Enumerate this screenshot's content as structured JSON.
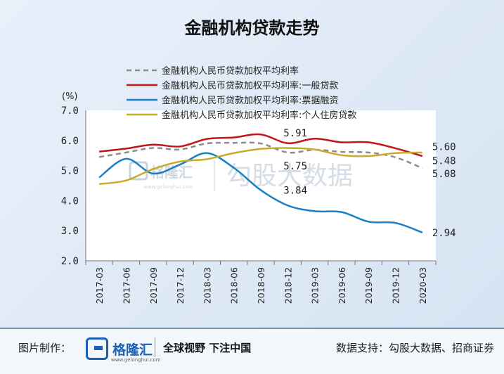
{
  "chart_data": {
    "type": "line",
    "title": "金融机构贷款走势",
    "ylabel": "(%)",
    "ylim": [
      2.0,
      7.0
    ],
    "yticks": [
      "7.0",
      "6.0",
      "5.0",
      "4.0",
      "3.0",
      "2.0"
    ],
    "categories": [
      "2017-03",
      "2017-06",
      "2017-09",
      "2017-12",
      "2018-03",
      "2018-06",
      "2018-09",
      "2018-12",
      "2019-03",
      "2019-06",
      "2019-09",
      "2019-12",
      "2020-03"
    ],
    "legend_position": "top",
    "series": [
      {
        "name": "金融机构人民币贷款加权平均利率",
        "color": "#8c8c8c",
        "dash": true,
        "values": [
          5.45,
          5.6,
          5.75,
          5.7,
          5.9,
          5.92,
          5.9,
          5.6,
          5.69,
          5.62,
          5.6,
          5.44,
          5.08
        ]
      },
      {
        "name": "金融机构人民币贷款加权平均利率:一般贷款",
        "color": "#c0161b",
        "dash": false,
        "values": [
          5.63,
          5.73,
          5.86,
          5.8,
          6.05,
          6.1,
          6.2,
          5.91,
          6.06,
          5.94,
          5.94,
          5.74,
          5.48
        ]
      },
      {
        "name": "金融机构人民币贷款加权平均利率:票据融资",
        "color": "#1a7fc4",
        "dash": false,
        "values": [
          4.77,
          5.39,
          4.9,
          5.2,
          5.58,
          5.09,
          4.35,
          3.84,
          3.65,
          3.62,
          3.3,
          3.26,
          2.94
        ]
      },
      {
        "name": "金融机构人民币贷款加权平均利率:个人住房贷款",
        "color": "#c8aa2c",
        "dash": false,
        "values": [
          4.55,
          4.67,
          5.05,
          5.3,
          5.38,
          5.58,
          5.72,
          5.75,
          5.7,
          5.51,
          5.48,
          5.58,
          5.6
        ]
      }
    ],
    "annotations": [
      {
        "text": "5.91",
        "x": "2018-12",
        "y": 6.25
      },
      {
        "text": "5.75",
        "x": "2018-12",
        "y": 5.15
      },
      {
        "text": "3.84",
        "x": "2018-12",
        "y": 4.35
      },
      {
        "text": "5.60",
        "x": "2020-03",
        "y": 5.8
      },
      {
        "text": "5.48",
        "x": "2020-03",
        "y": 5.33
      },
      {
        "text": "5.08",
        "x": "2020-03",
        "y": 4.9
      },
      {
        "text": "2.94",
        "x": "2020-03",
        "y": 2.94
      }
    ]
  },
  "watermarks": {
    "logo_text": "格隆汇",
    "logo_url": "www.gelonghui.com",
    "text2": "勾股大数据"
  },
  "footer": {
    "credit_label": "图片制作：",
    "logo_text": "格隆汇",
    "logo_url": "www.gelonghui.com",
    "slogan": "全球视野 下注中国",
    "source": "数据支持：勾股大数据、招商证券"
  }
}
